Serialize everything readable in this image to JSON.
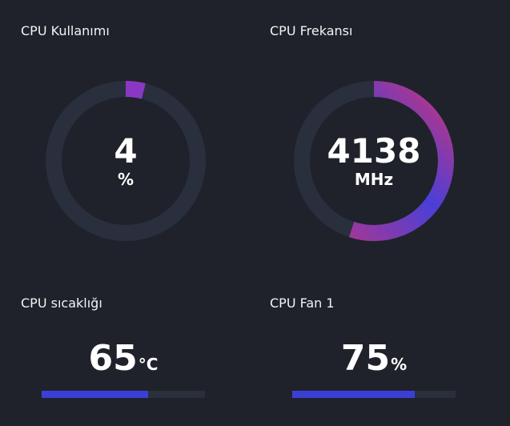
{
  "cpu_usage": {
    "title": "CPU Kullanımı",
    "value": "4",
    "unit": "%",
    "fraction": 0.04,
    "colors": {
      "track": "#2a2f3d",
      "start": "#8a38c4",
      "end": "#8a38c4"
    }
  },
  "cpu_frequency": {
    "title": "CPU Frekansı",
    "value": "4138",
    "unit": "MHz",
    "fraction": 0.55,
    "colors": {
      "track": "#2a2f3d",
      "start": "#c2357e",
      "end": "#4a3fd8"
    }
  },
  "cpu_temperature": {
    "title": "CPU sıcaklığı",
    "value": "65",
    "unit": "°C",
    "fraction": 0.65,
    "color": "#3b3fd6"
  },
  "cpu_fan": {
    "title": "CPU Fan 1",
    "value": "75",
    "unit": "%",
    "fraction": 0.75,
    "color": "#3b3fd6"
  }
}
